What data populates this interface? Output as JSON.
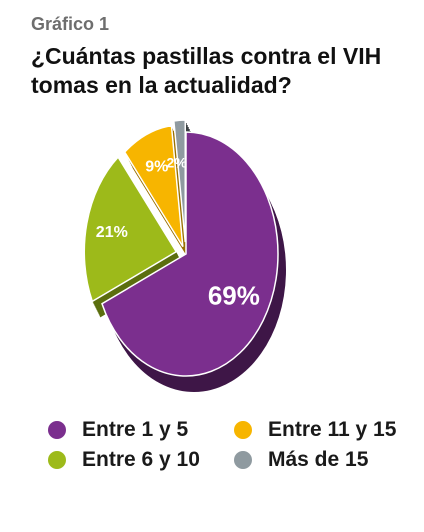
{
  "header": {
    "kicker": "Gráfico 1",
    "title": "¿Cuántas pastillas contra el VIH tomas en la actualidad?"
  },
  "chart_data": {
    "type": "pie",
    "title": "¿Cuántas pastillas contra el VIH tomas en la actualidad?",
    "legend_position": "bottom",
    "slices": [
      {
        "label": "Entre 1 y 5",
        "value": 69,
        "display": "69%",
        "color": "#7b2f8e",
        "side_color": "#3e1647"
      },
      {
        "label": "Entre 6 y 10",
        "value": 21,
        "display": "21%",
        "color": "#9dba1a",
        "side_color": "#5b6e0e"
      },
      {
        "label": "Entre 11 y 15",
        "value": 9,
        "display": "9%",
        "color": "#f7b500",
        "side_color": "#9a7000"
      },
      {
        "label": "Más de 15",
        "value": 2,
        "display": "2%",
        "color": "#8f9aa0",
        "side_color": "#3a3f42"
      }
    ]
  }
}
